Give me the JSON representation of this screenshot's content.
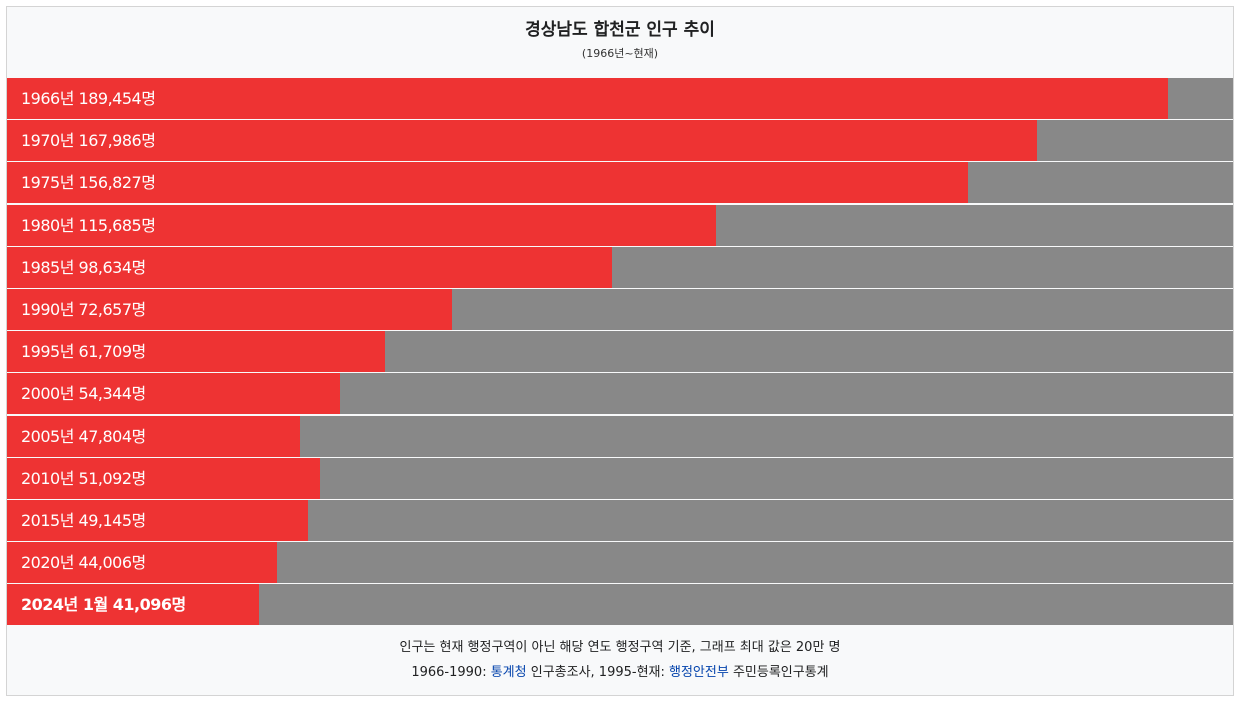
{
  "chart_data": {
    "type": "bar",
    "title": "경상남도 합천군 인구 추이",
    "subtitle": "(1966년~현재)",
    "max_value": 200000,
    "colors": {
      "fill": "#ee3333",
      "remainder": "#888888"
    },
    "unit": "명",
    "bars": [
      {
        "label": "1966년 189,454명",
        "value": 189454
      },
      {
        "label": "1970년 167,986명",
        "value": 167986
      },
      {
        "label": "1975년 156,827명",
        "value": 156827
      },
      {
        "label": "1980년 115,685명",
        "value": 115685
      },
      {
        "label": "1985년 98,634명",
        "value": 98634
      },
      {
        "label": "1990년 72,657명",
        "value": 72657
      },
      {
        "label": "1995년 61,709명",
        "value": 61709
      },
      {
        "label": "2000년 54,344명",
        "value": 54344
      },
      {
        "label": "2005년 47,804명",
        "value": 47804
      },
      {
        "label": "2010년 51,092명",
        "value": 51092
      },
      {
        "label": "2015년 49,145명",
        "value": 49145
      },
      {
        "label": "2020년 44,006명",
        "value": 44006
      },
      {
        "label": "2024년 1월 41,096명",
        "value": 41096
      }
    ]
  },
  "footer": {
    "note": "인구는 현재 행정구역이 아닌 해당 연도 행정구역 기준, 그래프 최대 값은 20만 명",
    "source_prefix": "1966-1990: ",
    "source_link1": "통계청",
    "source_mid": " 인구총조사, 1995-현재: ",
    "source_link2": "행정안전부",
    "source_suffix": " 주민등록인구통계"
  }
}
